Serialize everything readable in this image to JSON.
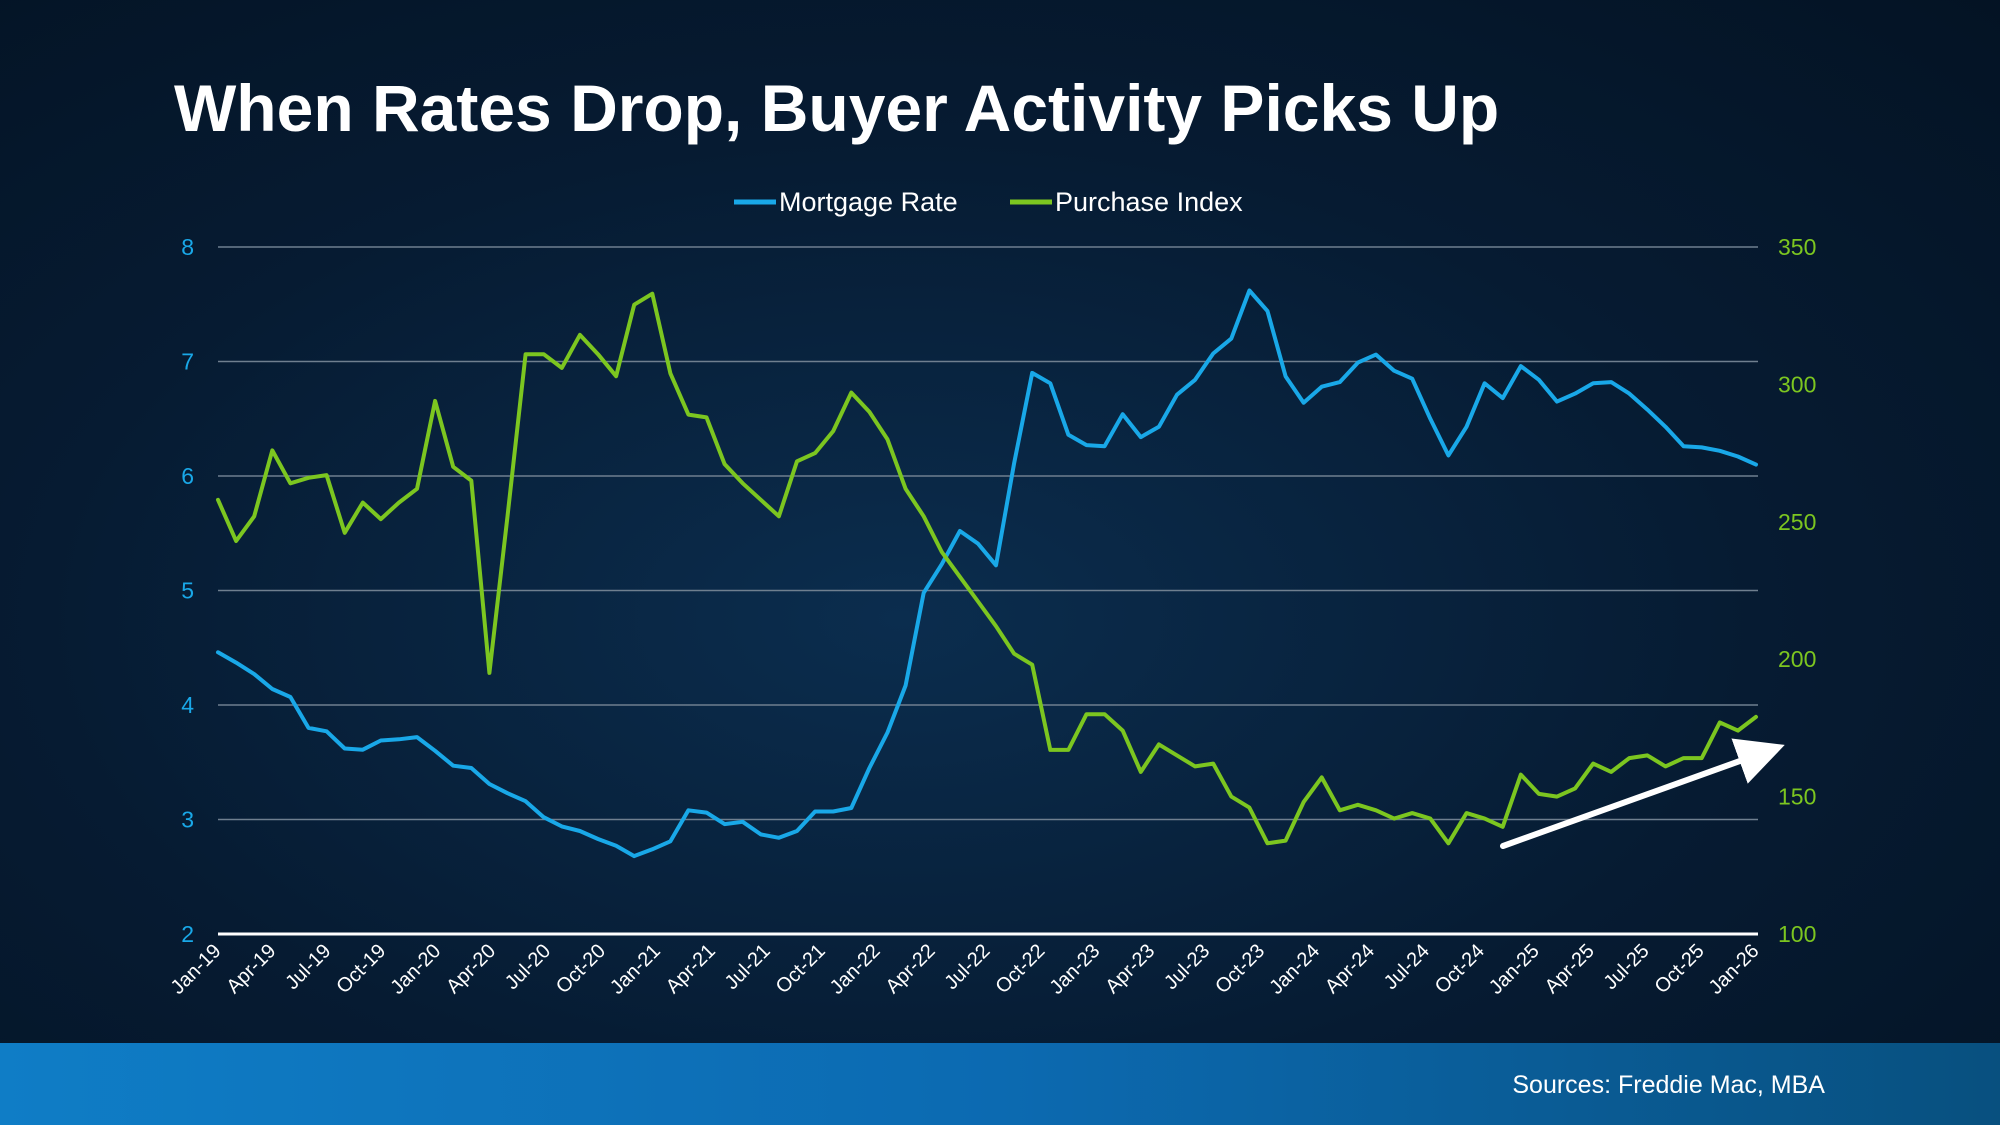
{
  "title": "When Rates Drop, Buyer Activity Picks Up",
  "source": "Sources: Freddie Mac, MBA",
  "colors": {
    "mortgage_rate": "#19a8e8",
    "purchase_index": "#7cc620",
    "grid": "#6f7f8f",
    "text": "#ffffff",
    "footer": "#0f7dc6"
  },
  "chart_data": {
    "type": "line",
    "title": "When Rates Drop, Buyer Activity Picks Up",
    "legend_position": "top-center",
    "grid": true,
    "x_tick_labels": [
      "Jan-19",
      "Apr-19",
      "Jul-19",
      "Oct-19",
      "Jan-20",
      "Apr-20",
      "Jul-20",
      "Oct-20",
      "Jan-21",
      "Apr-21",
      "Jul-21",
      "Oct-21",
      "Jan-22",
      "Apr-22",
      "Jul-22",
      "Oct-22",
      "Jan-23",
      "Apr-23",
      "Jul-23",
      "Oct-23",
      "Jan-24",
      "Apr-24",
      "Jul-24",
      "Oct-24",
      "Jan-25",
      "Apr-25",
      "Jul-25",
      "Oct-25",
      "Jan-26"
    ],
    "x_range": [
      "Jan-19",
      "Jan-26"
    ],
    "y_left": {
      "range": [
        2,
        8
      ],
      "ticks": [
        2,
        3,
        4,
        5,
        6,
        7,
        8
      ]
    },
    "y_right": {
      "range": [
        100,
        350
      ],
      "ticks": [
        100,
        150,
        200,
        250,
        300,
        350
      ]
    },
    "series": [
      {
        "name": "Mortgage Rate",
        "axis": "left",
        "color": "#19a8e8",
        "values": [
          4.46,
          4.37,
          4.27,
          4.14,
          4.07,
          3.8,
          3.77,
          3.62,
          3.61,
          3.69,
          3.7,
          3.72,
          3.6,
          3.47,
          3.45,
          3.31,
          3.23,
          3.16,
          3.02,
          2.94,
          2.9,
          2.83,
          2.77,
          2.68,
          2.74,
          2.81,
          3.08,
          3.06,
          2.96,
          2.98,
          2.87,
          2.84,
          2.9,
          3.07,
          3.07,
          3.1,
          3.45,
          3.76,
          4.17,
          4.98,
          5.23,
          5.52,
          5.41,
          5.22,
          6.11,
          6.9,
          6.81,
          6.36,
          6.27,
          6.26,
          6.54,
          6.34,
          6.43,
          6.71,
          6.84,
          7.07,
          7.2,
          7.62,
          7.44,
          6.87,
          6.64,
          6.78,
          6.82,
          6.99,
          7.06,
          6.92,
          6.85,
          6.5,
          6.18,
          6.43,
          6.81,
          6.68,
          6.96,
          6.84,
          6.65,
          6.72,
          6.81,
          6.82,
          6.72,
          6.58,
          6.43,
          6.26,
          6.25,
          6.22,
          6.17,
          6.1
        ]
      },
      {
        "name": "Purchase Index",
        "axis": "right",
        "color": "#7cc620",
        "values": [
          258,
          243,
          252,
          276,
          264,
          266,
          267,
          246,
          257,
          251,
          257,
          262,
          294,
          270,
          265,
          195,
          252,
          311,
          311,
          306,
          318,
          311,
          303,
          329,
          333,
          304,
          289,
          288,
          271,
          264,
          258,
          252,
          272,
          275,
          283,
          297,
          290,
          280,
          262,
          252,
          239,
          230,
          221,
          212,
          202,
          198,
          167,
          167,
          180,
          180,
          174,
          159,
          169,
          165,
          161,
          162,
          150,
          146,
          133,
          134,
          148,
          157,
          145,
          147,
          145,
          142,
          144,
          142,
          133,
          144,
          142,
          139,
          158,
          151,
          150,
          153,
          162,
          159,
          164,
          165,
          161,
          164,
          164,
          177,
          174,
          179
        ]
      }
    ],
    "annotation": "arrow-up-trend"
  }
}
